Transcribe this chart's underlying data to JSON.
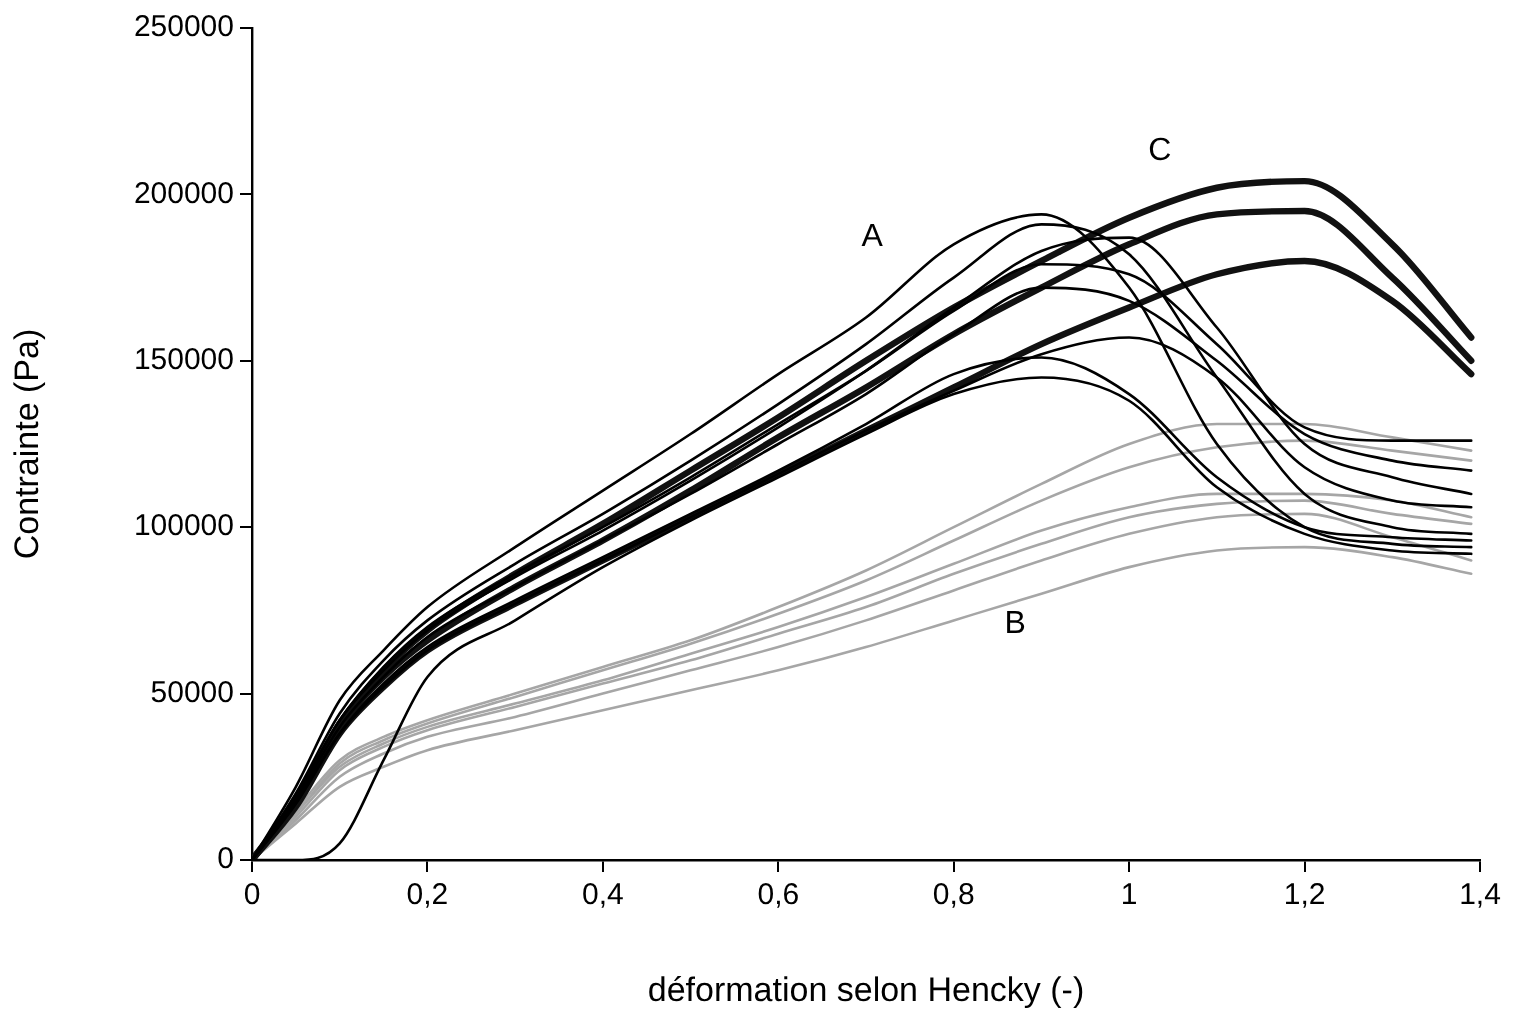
{
  "chart_data": {
    "type": "line",
    "xlabel": "déformation selon Hencky (-)",
    "ylabel": "Contrainte (Pa)",
    "x": [
      0,
      0.05,
      0.1,
      0.15,
      0.2,
      0.3,
      0.4,
      0.5,
      0.6,
      0.7,
      0.8,
      0.9,
      1.0,
      1.1,
      1.2,
      1.3,
      1.39
    ],
    "series": [
      {
        "color": "#000000",
        "values": [
          0,
          22000,
          48000,
          63000,
          76000,
          94000,
          111000,
          128000,
          146000,
          163000,
          185000,
          194000,
          172000,
          125000,
          100000,
          95000,
          94000
        ]
      },
      {
        "color": "#000000",
        "values": [
          0,
          20000,
          44000,
          60000,
          72000,
          89000,
          104000,
          120000,
          137000,
          155000,
          175000,
          191000,
          182000,
          145000,
          110000,
          100000,
          98000
        ]
      },
      {
        "color": "#000000",
        "values": [
          0,
          19000,
          42000,
          58000,
          70000,
          86000,
          100000,
          115000,
          131000,
          147000,
          165000,
          179000,
          176000,
          155000,
          130000,
          126000,
          126000
        ]
      },
      {
        "color": "#000000",
        "values": [
          0,
          19000,
          42000,
          57000,
          69000,
          85000,
          99000,
          114000,
          130000,
          147000,
          166000,
          183000,
          187000,
          160000,
          125000,
          115000,
          110000
        ]
      },
      {
        "color": "#000000",
        "values": [
          0,
          18000,
          40000,
          55000,
          67000,
          82000,
          96000,
          110000,
          125000,
          140000,
          158000,
          172000,
          168000,
          150000,
          128000,
          120000,
          117000
        ]
      },
      {
        "color": "#000000",
        "values": [
          0,
          17000,
          38000,
          53000,
          64000,
          78000,
          91000,
          104000,
          117000,
          131000,
          146000,
          151000,
          140000,
          115000,
          100000,
          97000,
          96000
        ]
      },
      {
        "color": "#000000",
        "values": [
          0,
          0,
          5000,
          30000,
          55000,
          72000,
          88000,
          102000,
          115000,
          128000,
          140000,
          145000,
          138000,
          112000,
          98000,
          93000,
          92000
        ]
      },
      {
        "color": "#000000",
        "values": [
          0,
          17000,
          38000,
          52000,
          63000,
          77000,
          90000,
          103000,
          116000,
          129000,
          141000,
          152000,
          157000,
          145000,
          118000,
          108000,
          106000
        ]
      },
      {
        "color": "#111111",
        "values": [
          0,
          18000,
          41000,
          57000,
          69000,
          86000,
          101000,
          117000,
          133000,
          150000,
          166000,
          180000,
          193000,
          202000,
          204000,
          185000,
          157000
        ]
      },
      {
        "color": "#111111",
        "values": [
          0,
          17000,
          40000,
          55000,
          66000,
          82000,
          96000,
          111000,
          127000,
          142000,
          158000,
          172000,
          185000,
          194000,
          195000,
          175000,
          150000
        ]
      },
      {
        "color": "#111111",
        "values": [
          0,
          16000,
          38000,
          52000,
          63000,
          77000,
          90000,
          103000,
          116000,
          129000,
          142000,
          155000,
          166000,
          176000,
          180000,
          168000,
          146000
        ]
      },
      {
        "color": "#a6a6a6",
        "values": [
          0,
          15000,
          30000,
          37000,
          42000,
          50000,
          58000,
          66000,
          76000,
          87000,
          100000,
          113000,
          125000,
          131000,
          131000,
          127000,
          123000
        ]
      },
      {
        "color": "#a6a6a6",
        "values": [
          0,
          14000,
          29000,
          36000,
          41000,
          49000,
          57000,
          65000,
          74000,
          84000,
          96000,
          108000,
          118000,
          124000,
          126000,
          123000,
          120000
        ]
      },
      {
        "color": "#a6a6a6",
        "values": [
          0,
          14000,
          28000,
          35000,
          40000,
          47000,
          54000,
          62000,
          70000,
          79000,
          89000,
          99000,
          106000,
          110000,
          110000,
          108000,
          103000
        ]
      },
      {
        "color": "#a6a6a6",
        "values": [
          0,
          13000,
          27000,
          34000,
          39000,
          46000,
          53000,
          60000,
          68000,
          76000,
          86000,
          95000,
          103000,
          107000,
          108000,
          104000,
          101000
        ]
      },
      {
        "color": "#a6a6a6",
        "values": [
          0,
          12000,
          25000,
          32000,
          37000,
          43000,
          50000,
          57000,
          64000,
          72000,
          81000,
          90000,
          98000,
          103000,
          104000,
          97000,
          90000
        ]
      },
      {
        "color": "#a6a6a6",
        "values": [
          0,
          11000,
          22000,
          28000,
          33000,
          39000,
          45000,
          51000,
          57000,
          64000,
          72000,
          80000,
          88000,
          93000,
          94000,
          91000,
          86000
        ]
      }
    ],
    "xlim": [
      0,
      1.4
    ],
    "xticks": [
      0,
      {
        "value": 0.2,
        "label": "0,2"
      },
      {
        "value": 0.4,
        "label": "0,4"
      },
      {
        "value": 0.6,
        "label": "0,6"
      },
      {
        "value": 0.8,
        "label": "0,8"
      },
      1,
      {
        "value": 1.2,
        "label": "1,2"
      },
      {
        "value": 1.4,
        "label": "1,4"
      }
    ],
    "ylim": [
      0,
      250000
    ],
    "yticks": [
      0,
      50000,
      100000,
      150000,
      200000,
      250000
    ],
    "annotations": [
      "A",
      "B",
      "C"
    ],
    "legend": false,
    "marker": "none",
    "line_style": "solid"
  }
}
